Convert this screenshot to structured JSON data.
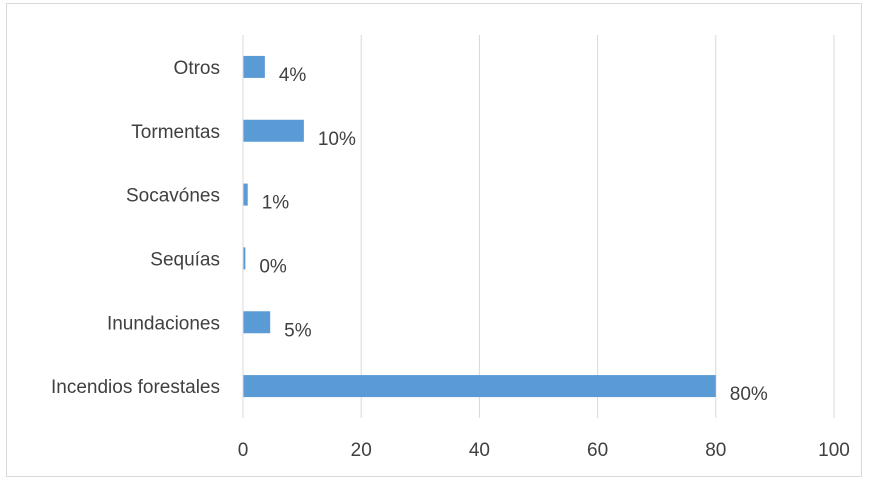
{
  "chart_data": {
    "type": "bar",
    "orientation": "horizontal",
    "categories": [
      "Incendios forestales",
      "Inundaciones",
      "Sequías",
      "Socavónes",
      "Tormentas",
      "Otros"
    ],
    "values": [
      80,
      4.6,
      0.4,
      0.8,
      10.3,
      3.7
    ],
    "data_labels": [
      "80%",
      "5%",
      "0%",
      "1%",
      "10%",
      "4%"
    ],
    "xlim": [
      0,
      100
    ],
    "x_ticks": [
      "0",
      "20",
      "40",
      "60",
      "80",
      "100"
    ],
    "grid": "vertical",
    "bar_color": "#5b9bd5",
    "grid_color": "#d9d9d9",
    "title": "",
    "xlabel": "",
    "ylabel": ""
  }
}
